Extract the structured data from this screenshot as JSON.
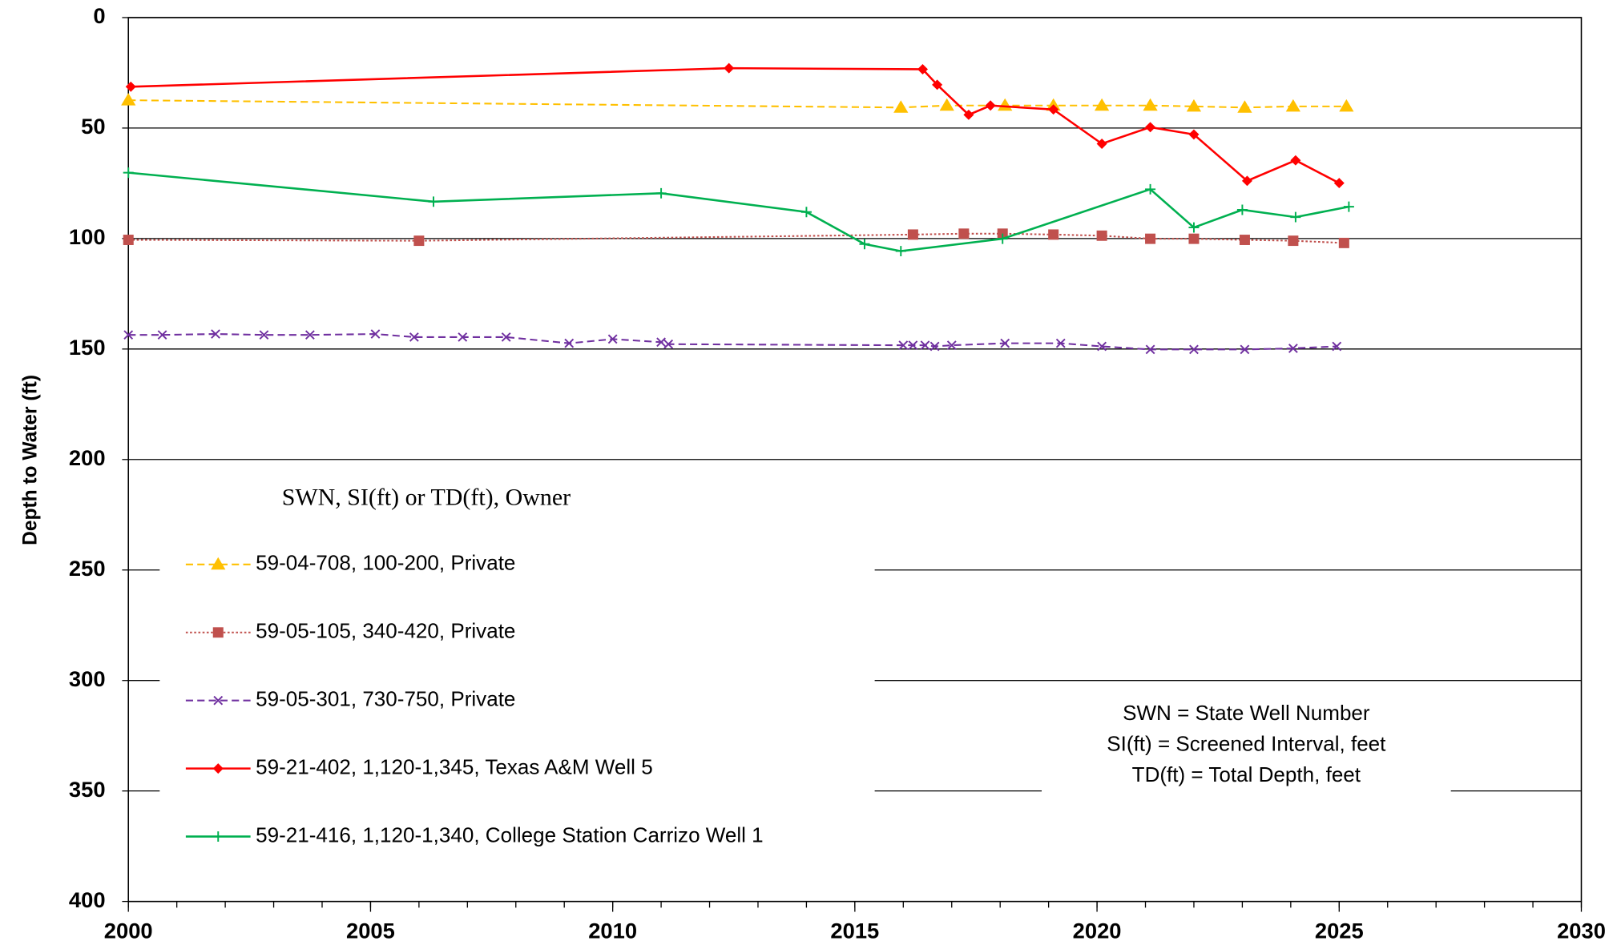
{
  "chart_data": {
    "type": "line",
    "y_label": "Depth to Water (ft)",
    "y_inverted": true,
    "grid": true,
    "xlim": [
      2000,
      2030
    ],
    "xticks": [
      2000,
      2005,
      2010,
      2015,
      2020,
      2025,
      2030
    ],
    "ylim": [
      0,
      400
    ],
    "yticks": [
      0,
      50,
      100,
      150,
      200,
      250,
      300,
      350,
      400
    ],
    "legend_title": "SWN, SI(ft) or TD(ft), Owner",
    "annotations": [
      "SWN = State Well Number",
      "SI(ft) = Screened Interval, feet",
      "TD(ft) = Total Depth, feet"
    ],
    "series": [
      {
        "name": "59-04-708, 100-200, Private",
        "color": "#ffc000",
        "line": "dashed",
        "marker": "triangle",
        "x": [
          2000,
          2015.95,
          2016.9,
          2018.1,
          2019.1,
          2020.1,
          2021.1,
          2022,
          2023.05,
          2024.05,
          2025.15
        ],
        "values": [
          37.4,
          40.7,
          39.8,
          39.8,
          39.8,
          39.8,
          39.8,
          40.2,
          40.7,
          40.2,
          40.2
        ]
      },
      {
        "name": "59-05-105, 340-420, Private",
        "color": "#c0504d",
        "line": "dotted",
        "marker": "square",
        "x": [
          2000,
          2006,
          2016.2,
          2017.25,
          2018.05,
          2019.1,
          2020.1,
          2021.1,
          2022,
          2023.05,
          2024.05,
          2025.1
        ],
        "values": [
          100.6,
          101,
          98.2,
          97.8,
          97.8,
          98.2,
          98.7,
          100.1,
          100.1,
          100.6,
          101,
          102
        ]
      },
      {
        "name": "59-05-301, 730-750, Private",
        "color": "#7030a0",
        "line": "dashed",
        "marker": "x",
        "x": [
          2000,
          2000.7,
          2001.8,
          2002.8,
          2003.75,
          2005.1,
          2005.9,
          2006.9,
          2007.8,
          2009.1,
          2010,
          2011,
          2011.15,
          2016,
          2016.2,
          2016.45,
          2016.65,
          2017,
          2018.1,
          2019.25,
          2020.1,
          2021.1,
          2022,
          2023.05,
          2024.05,
          2024.95
        ],
        "values": [
          143.6,
          143.6,
          143.2,
          143.6,
          143.6,
          143.2,
          144.6,
          144.6,
          144.6,
          147.4,
          145.5,
          146.9,
          147.8,
          148.3,
          148.3,
          148.3,
          148.8,
          148.3,
          147.4,
          147.4,
          148.8,
          150.2,
          150.2,
          150.2,
          149.7,
          148.8
        ]
      },
      {
        "name": "59-21-402, 1,120-1,345, Texas A&M Well 5",
        "color": "#ff0000",
        "line": "solid",
        "marker": "diamond",
        "x": [
          2000.05,
          2012.4,
          2016.4,
          2016.7,
          2017.35,
          2017.8,
          2019.1,
          2020.1,
          2021.1,
          2022,
          2023.1,
          2024.1,
          2025
        ],
        "values": [
          31.3,
          22.9,
          23.4,
          30.4,
          44,
          39.8,
          41.6,
          57.1,
          49.6,
          52.9,
          73.9,
          64.6,
          74.9
        ]
      },
      {
        "name": "59-21-416, 1,120-1,340, College Station Carrizo Well 1",
        "color": "#00b050",
        "line": "solid",
        "marker": "plus",
        "x": [
          2000,
          2006.3,
          2011,
          2014,
          2015.2,
          2015.95,
          2018.05,
          2021.1,
          2022,
          2023,
          2024.1,
          2025.2
        ],
        "values": [
          70.2,
          83.3,
          79.5,
          88,
          102.5,
          105.7,
          100.1,
          77.7,
          95,
          87,
          90.3,
          85.6
        ]
      }
    ]
  }
}
